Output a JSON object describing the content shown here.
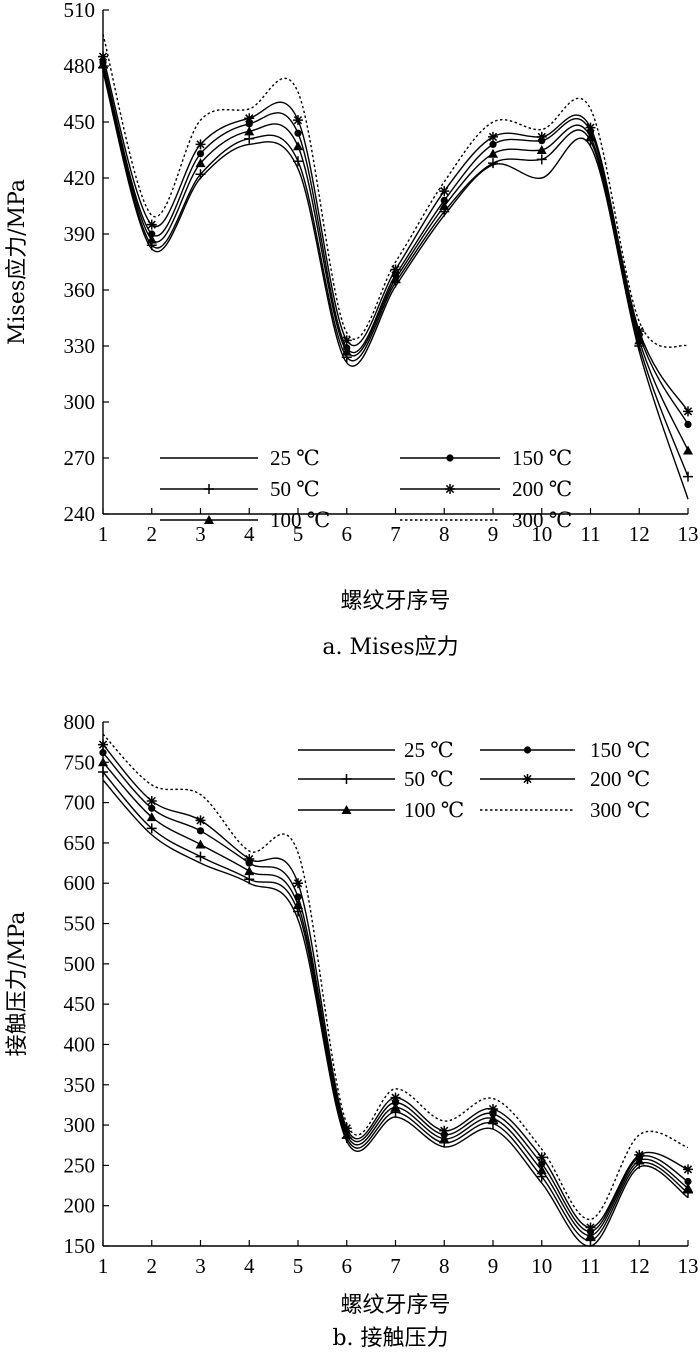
{
  "chart_data": [
    {
      "type": "line",
      "caption": "a. Mises应力",
      "xlabel": "螺纹牙序号",
      "ylabel": "Mises应力/MPa",
      "x": [
        1,
        2,
        3,
        4,
        5,
        6,
        7,
        8,
        9,
        10,
        11,
        12,
        13
      ],
      "xlim": [
        1,
        13
      ],
      "ylim": [
        240,
        510
      ],
      "yticks": [
        240,
        270,
        300,
        330,
        360,
        390,
        420,
        450,
        480,
        510
      ],
      "legend_position": "bottom-left",
      "grid": false,
      "series": [
        {
          "name": "25 ℃",
          "marker": "none",
          "dash": "solid",
          "values": [
            477,
            382,
            420,
            438,
            425,
            321,
            362,
            400,
            427,
            420,
            437,
            327,
            248
          ]
        },
        {
          "name": "50 ℃",
          "marker": "plus",
          "dash": "solid",
          "values": [
            479,
            384,
            422,
            441,
            429,
            324,
            364,
            402,
            428,
            430,
            440,
            330,
            260
          ]
        },
        {
          "name": "100 ℃",
          "marker": "triangle",
          "dash": "solid",
          "values": [
            481,
            387,
            428,
            445,
            437,
            327,
            366,
            405,
            433,
            435,
            442,
            333,
            274
          ]
        },
        {
          "name": "150 ℃",
          "marker": "circle",
          "dash": "solid",
          "values": [
            482,
            390,
            433,
            449,
            444,
            329,
            368,
            408,
            438,
            440,
            445,
            336,
            288
          ]
        },
        {
          "name": "200 ℃",
          "marker": "asterisk",
          "dash": "solid",
          "values": [
            485,
            395,
            438,
            452,
            451,
            333,
            371,
            413,
            442,
            442,
            447,
            338,
            295
          ]
        },
        {
          "name": "300 ℃",
          "marker": "none",
          "dash": "dotted",
          "values": [
            497,
            400,
            451,
            457,
            466,
            337,
            375,
            418,
            450,
            446,
            457,
            343,
            330
          ]
        }
      ]
    },
    {
      "type": "line",
      "caption": "b. 接触压力",
      "xlabel": "螺纹牙序号",
      "ylabel": "接触压力/MPa",
      "x": [
        1,
        2,
        3,
        4,
        5,
        6,
        7,
        8,
        9,
        10,
        11,
        12,
        13
      ],
      "xlim": [
        1,
        13
      ],
      "ylim": [
        150,
        800
      ],
      "yticks": [
        150,
        200,
        250,
        300,
        350,
        400,
        450,
        500,
        550,
        600,
        650,
        700,
        750,
        800
      ],
      "legend_position": "top-right",
      "grid": false,
      "series": [
        {
          "name": "25 ℃",
          "marker": "none",
          "dash": "solid",
          "values": [
            728,
            660,
            625,
            600,
            555,
            280,
            310,
            273,
            295,
            228,
            150,
            248,
            210
          ]
        },
        {
          "name": "50 ℃",
          "marker": "plus",
          "dash": "solid",
          "values": [
            738,
            668,
            633,
            605,
            565,
            284,
            316,
            278,
            302,
            236,
            157,
            252,
            216
          ]
        },
        {
          "name": "100 ℃",
          "marker": "triangle",
          "dash": "solid",
          "values": [
            750,
            682,
            648,
            615,
            573,
            288,
            322,
            283,
            308,
            244,
            163,
            256,
            222
          ]
        },
        {
          "name": "150 ℃",
          "marker": "circle",
          "dash": "solid",
          "values": [
            762,
            693,
            665,
            625,
            583,
            292,
            328,
            288,
            314,
            252,
            168,
            260,
            230
          ]
        },
        {
          "name": "200 ℃",
          "marker": "asterisk",
          "dash": "solid",
          "values": [
            772,
            702,
            678,
            630,
            600,
            296,
            334,
            293,
            320,
            260,
            173,
            263,
            245
          ]
        },
        {
          "name": "300 ℃",
          "marker": "none",
          "dash": "dotted",
          "values": [
            785,
            722,
            710,
            640,
            638,
            302,
            345,
            305,
            333,
            270,
            183,
            288,
            272
          ]
        }
      ]
    }
  ]
}
